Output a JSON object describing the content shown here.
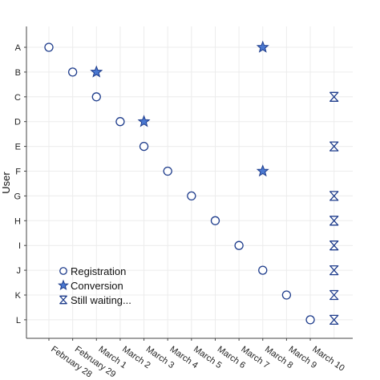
{
  "chart_data": {
    "type": "scatter",
    "ylabel": "User",
    "xlabel": "",
    "title": "",
    "users": [
      "A",
      "B",
      "C",
      "D",
      "E",
      "F",
      "G",
      "H",
      "I",
      "J",
      "K",
      "L"
    ],
    "x_ticks": [
      "February 28",
      "February 29",
      "March 1",
      "March 2",
      "March 3",
      "March 4",
      "March 5",
      "March 6",
      "March 7",
      "March 8",
      "March 9",
      "March 10"
    ],
    "grid": true,
    "legend_position": "bottom-left",
    "colors": {
      "marker_edge": "#1f3d8c",
      "star_fill": "#4a78d0",
      "grid": "#ececec",
      "axis": "#444444"
    },
    "series": [
      {
        "name": "Registration",
        "marker": "circle",
        "points": [
          {
            "user": "A",
            "x": "February 28"
          },
          {
            "user": "B",
            "x": "February 29"
          },
          {
            "user": "C",
            "x": "March 1"
          },
          {
            "user": "D",
            "x": "March 2"
          },
          {
            "user": "E",
            "x": "March 3"
          },
          {
            "user": "F",
            "x": "March 4"
          },
          {
            "user": "G",
            "x": "March 5"
          },
          {
            "user": "H",
            "x": "March 6"
          },
          {
            "user": "I",
            "x": "March 7"
          },
          {
            "user": "J",
            "x": "March 8"
          },
          {
            "user": "K",
            "x": "March 9"
          },
          {
            "user": "L",
            "x": "March 10"
          }
        ]
      },
      {
        "name": "Conversion",
        "marker": "star",
        "points": [
          {
            "user": "A",
            "x": "March 8"
          },
          {
            "user": "B",
            "x": "March 1"
          },
          {
            "user": "D",
            "x": "March 3"
          },
          {
            "user": "F",
            "x": "March 8"
          }
        ]
      },
      {
        "name": "Still waiting...",
        "marker": "hourglass",
        "points": [
          {
            "user": "C",
            "x": "March 11"
          },
          {
            "user": "E",
            "x": "March 11"
          },
          {
            "user": "G",
            "x": "March 11"
          },
          {
            "user": "H",
            "x": "March 11"
          },
          {
            "user": "I",
            "x": "March 11"
          },
          {
            "user": "J",
            "x": "March 11"
          },
          {
            "user": "K",
            "x": "March 11"
          },
          {
            "user": "L",
            "x": "March 11"
          }
        ]
      }
    ]
  }
}
